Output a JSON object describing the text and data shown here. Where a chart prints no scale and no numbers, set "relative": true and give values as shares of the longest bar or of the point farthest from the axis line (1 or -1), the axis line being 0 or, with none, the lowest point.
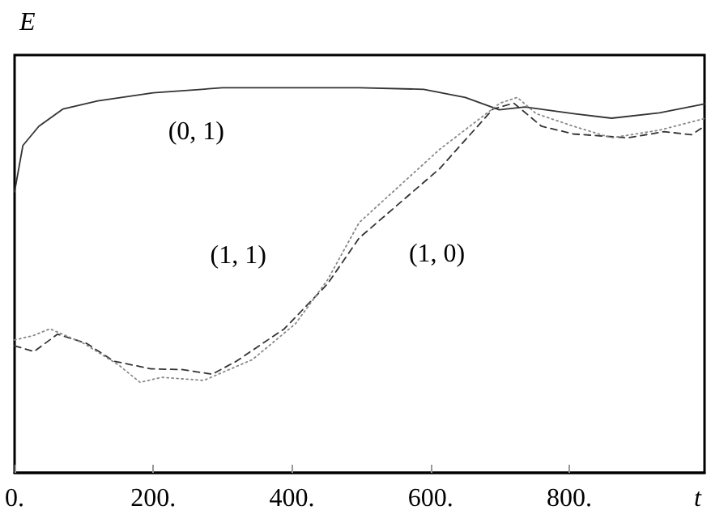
{
  "chart_data": {
    "type": "line",
    "xlabel": "t",
    "ylabel": "E",
    "relative": true,
    "legend": false,
    "grid": false,
    "marker": "none",
    "tick_labels": "x",
    "xlim": [
      0,
      995
    ],
    "xticks": [
      {
        "value": 0,
        "label": "0."
      },
      {
        "value": 200,
        "label": "200."
      },
      {
        "value": 400,
        "label": "400."
      },
      {
        "value": 600,
        "label": "600."
      },
      {
        "value": 800,
        "label": "800."
      }
    ],
    "series": [
      {
        "name": "(0, 1)",
        "color": "#333333",
        "line_style": "solid",
        "x": [
          0,
          12,
          35,
          70,
          120,
          200,
          262,
          300,
          497,
          590,
          650,
          699,
          736,
          806,
          861,
          930,
          995
        ],
        "values": [
          0.73,
          0.85,
          0.9,
          0.945,
          0.966,
          0.987,
          0.995,
          1.0,
          1.0,
          0.996,
          0.975,
          0.943,
          0.95,
          0.933,
          0.921,
          0.935,
          0.958
        ]
      },
      {
        "name": "(1, 0)",
        "color": "#333333",
        "line_style": "dashed",
        "x": [
          0,
          28,
          62,
          104,
          143,
          197,
          243,
          285,
          320,
          389,
          451,
          497,
          613,
          690,
          720,
          760,
          806,
          884,
          937,
          976,
          995
        ],
        "values": [
          0.33,
          0.315,
          0.36,
          0.336,
          0.29,
          0.27,
          0.268,
          0.256,
          0.29,
          0.374,
          0.49,
          0.61,
          0.79,
          0.945,
          0.96,
          0.9,
          0.88,
          0.87,
          0.886,
          0.878,
          0.9
        ]
      },
      {
        "name": "(1, 1)",
        "color": "#888888",
        "line_style": "dotted",
        "x": [
          0,
          28,
          51,
          100,
          150,
          181,
          212,
          273,
          343,
          405,
          451,
          497,
          613,
          700,
          725,
          752,
          806,
          861,
          930,
          995
        ],
        "values": [
          0.345,
          0.357,
          0.374,
          0.336,
          0.28,
          0.235,
          0.248,
          0.24,
          0.294,
          0.387,
          0.5,
          0.65,
          0.84,
          0.96,
          0.975,
          0.933,
          0.9,
          0.87,
          0.89,
          0.92
        ]
      }
    ]
  }
}
